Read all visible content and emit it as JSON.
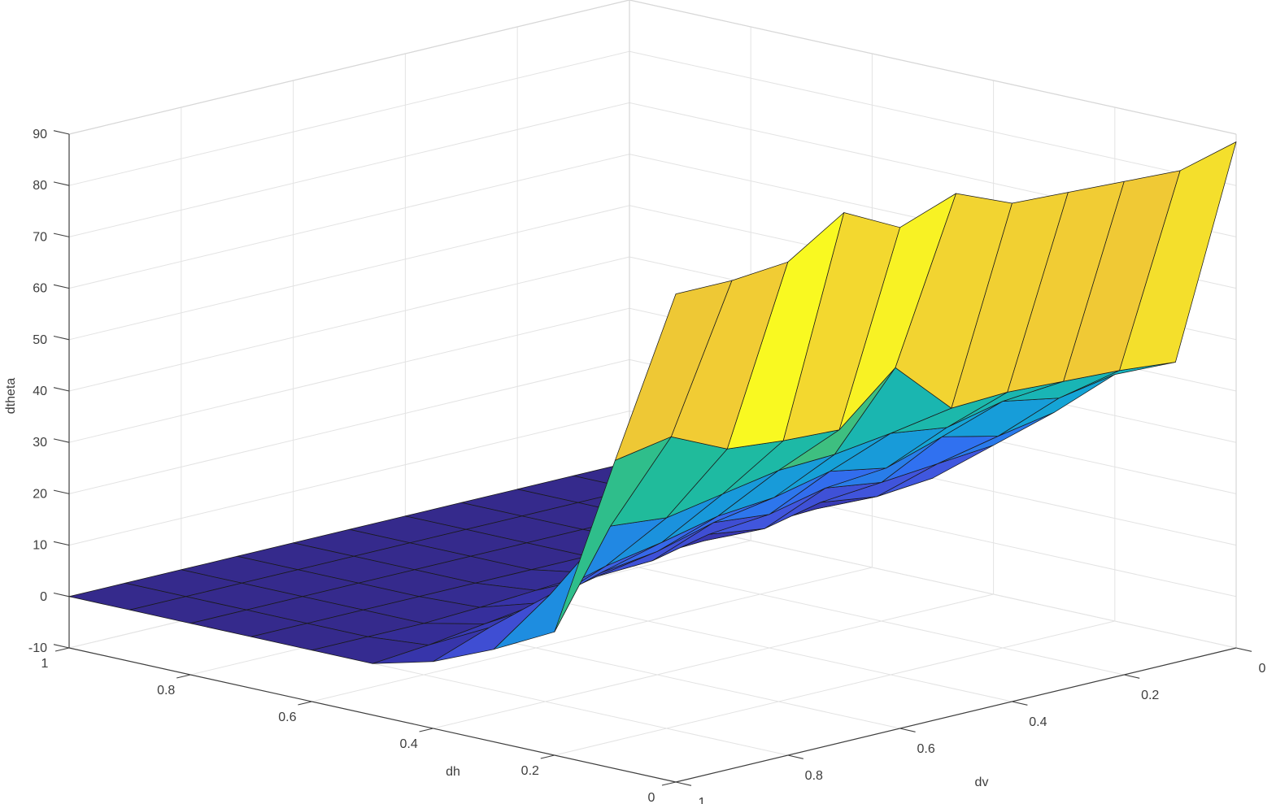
{
  "chart_data": {
    "type": "surface",
    "title": "",
    "xlabel": "dv",
    "ylabel": "dh",
    "zlabel": "dtheta",
    "x_dv": [
      0,
      0.1,
      0.2,
      0.3,
      0.4,
      0.5,
      0.6,
      0.7,
      0.8,
      0.9,
      1.0
    ],
    "y_dh": [
      0,
      0.1,
      0.2,
      0.3,
      0.4,
      0.5,
      0.6,
      0.7,
      0.8,
      0.9,
      1.0
    ],
    "z_dtheta": [
      [
        88.5,
        85.5,
        86.0,
        86.5,
        87.0,
        91.5,
        87.5,
        93.0,
        86.0,
        85.0,
        85.0
      ],
      [
        43.0,
        44.0,
        44.5,
        45.0,
        44.5,
        55.0,
        45.5,
        46.0,
        47.0,
        52.0,
        50.0
      ],
      [
        38.0,
        36.0,
        38.0,
        35.5,
        37.0,
        35.5,
        35.0,
        33.0,
        31.0,
        32.0,
        14.0
      ],
      [
        28.0,
        26.0,
        28.5,
        25.0,
        27.0,
        24.5,
        23.5,
        21.0,
        19.0,
        16.0,
        8.0
      ],
      [
        19.0,
        18.0,
        17.0,
        18.5,
        16.0,
        17.0,
        14.0,
        12.5,
        9.0,
        7.0,
        3.0
      ],
      [
        10.0,
        9.0,
        10.5,
        8.0,
        9.5,
        7.0,
        6.5,
        4.0,
        2.5,
        1.0,
        0.0
      ],
      [
        4.5,
        4.0,
        3.5,
        3.0,
        2.5,
        2.0,
        1.2,
        0.5,
        0.0,
        0.0,
        0.0
      ],
      [
        1.0,
        0.8,
        0.5,
        0.3,
        0.0,
        0.0,
        0.0,
        0.0,
        0.0,
        0.0,
        0.0
      ],
      [
        0.0,
        0.0,
        0.0,
        0.0,
        0.0,
        0.0,
        0.0,
        0.0,
        0.0,
        0.0,
        0.0
      ],
      [
        0.0,
        0.0,
        0.0,
        0.0,
        0.0,
        0.0,
        0.0,
        0.0,
        0.0,
        0.0,
        0.0
      ],
      [
        0.0,
        0.0,
        0.0,
        0.0,
        0.0,
        0.0,
        0.0,
        0.0,
        0.0,
        0.0,
        0.0
      ]
    ],
    "xlim": [
      0,
      1
    ],
    "ylim": [
      0,
      1
    ],
    "zlim": [
      -10,
      90
    ],
    "xticks": [
      0,
      0.2,
      0.4,
      0.6,
      0.8,
      1
    ],
    "yticks": [
      0,
      0.2,
      0.4,
      0.6,
      0.8,
      1
    ],
    "zticks": [
      -10,
      0,
      10,
      20,
      30,
      40,
      50,
      60,
      70,
      80,
      90
    ],
    "xtick_labels": [
      "0",
      "0.2",
      "0.4",
      "0.6",
      "0.8",
      "1"
    ],
    "ytick_labels": [
      "0",
      "0.2",
      "0.4",
      "0.6",
      "0.8",
      "1"
    ],
    "ztick_labels": [
      "-10",
      "0",
      "10",
      "20",
      "30",
      "40",
      "50",
      "60",
      "70",
      "80",
      "90"
    ],
    "grid": true,
    "legend": null,
    "view": "3-D, azimuth ~ -37.5 deg, elevation ~ 30 deg",
    "caxis": [
      0,
      93
    ],
    "colormap": "parula",
    "colormap_stops": [
      [
        0.0,
        "#352a8c"
      ],
      [
        0.06,
        "#3631a2"
      ],
      [
        0.12,
        "#3a3fc0"
      ],
      [
        0.2,
        "#4156dd"
      ],
      [
        0.28,
        "#3071f0"
      ],
      [
        0.36,
        "#1a94dc"
      ],
      [
        0.44,
        "#12aed2"
      ],
      [
        0.5,
        "#1fbb9d"
      ],
      [
        0.58,
        "#35bf85"
      ],
      [
        0.7,
        "#8fc04d"
      ],
      [
        0.82,
        "#d6bc38"
      ],
      [
        0.92,
        "#f0c935"
      ],
      [
        0.97,
        "#f7ec27"
      ],
      [
        1.0,
        "#f9f921"
      ]
    ]
  },
  "figure": {
    "background": "#ffffff",
    "grid_color": "#e3e3e3",
    "box_edge_color": "#d7d7d7",
    "axis_color": "#3f3f3f",
    "tick_label_color": "#3d3d3d",
    "mesh_edge_color": "#1a1a1a",
    "tick_font_size": 16
  }
}
